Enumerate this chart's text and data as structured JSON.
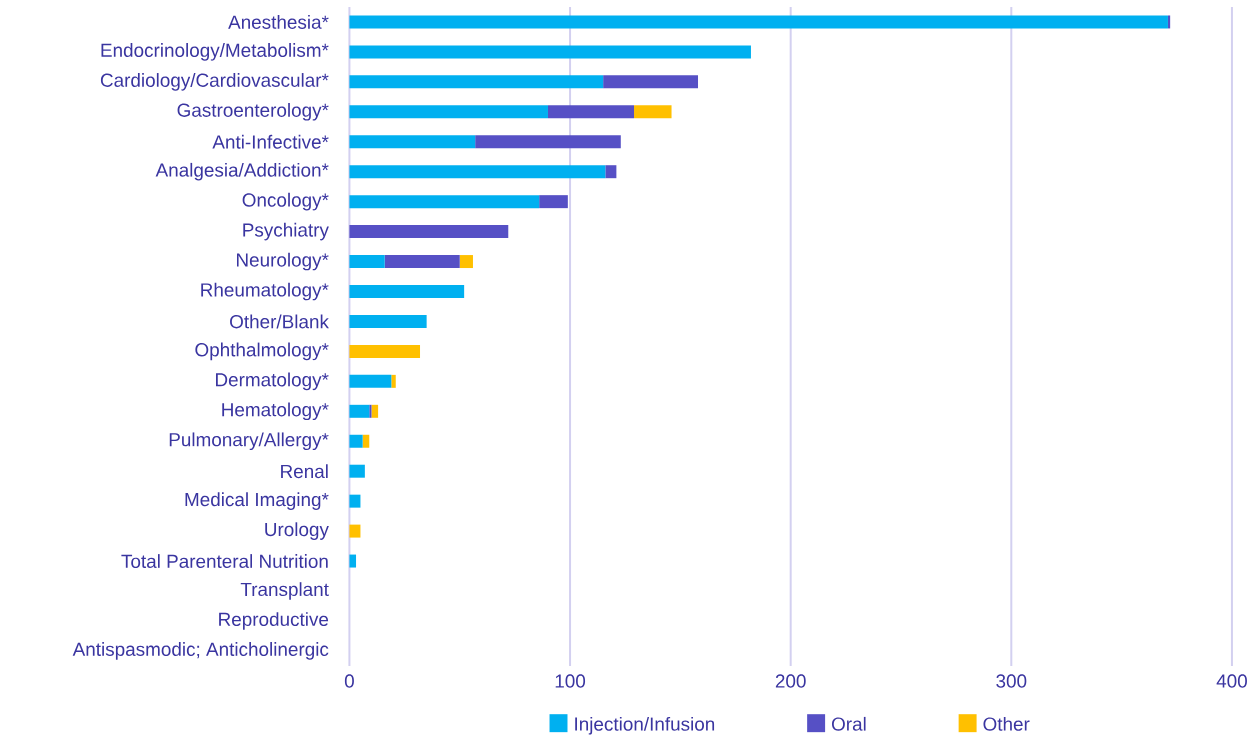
{
  "chart_data": {
    "type": "bar",
    "orientation": "horizontal",
    "stacked": true,
    "categories": [
      "Anesthesia*",
      "Endocrinology/Metabolism*",
      "Cardiology/Cardiovascular*",
      "Gastroenterology*",
      "Anti-Infective*",
      "Analgesia/Addiction*",
      "Oncology*",
      "Psychiatry",
      "Neurology*",
      "Rheumatology*",
      "Other/Blank",
      "Ophthalmology*",
      "Dermatology*",
      "Hematology*",
      "Pulmonary/Allergy*",
      "Renal",
      "Medical Imaging*",
      "Urology",
      "Total Parenteral Nutrition",
      "Transplant",
      "Reproductive",
      "Antispasmodic; Anticholinergic"
    ],
    "series": [
      {
        "name": "Injection/Infusion",
        "color": "#00b0f0",
        "values": [
          371,
          182,
          115,
          90,
          57,
          116,
          86,
          0,
          16,
          52,
          35,
          0,
          19,
          9,
          6,
          7,
          5,
          0,
          3,
          0,
          0,
          0
        ]
      },
      {
        "name": "Oral",
        "color": "#5650c5",
        "values": [
          1,
          0,
          43,
          39,
          66,
          5,
          13,
          72,
          34,
          0,
          0,
          0,
          0,
          1,
          0,
          0,
          0,
          0,
          0,
          0,
          0,
          0
        ]
      },
      {
        "name": "Other",
        "color": "#ffc000",
        "values": [
          0,
          0,
          0,
          17,
          0,
          0,
          0,
          0,
          6,
          0,
          0,
          32,
          2,
          3,
          3,
          0,
          0,
          5,
          0,
          0,
          0,
          0
        ]
      }
    ],
    "xlim": [
      0,
      400
    ],
    "xticks": [
      0,
      100,
      200,
      300,
      400
    ],
    "grid": "x",
    "legend": "bottom"
  }
}
